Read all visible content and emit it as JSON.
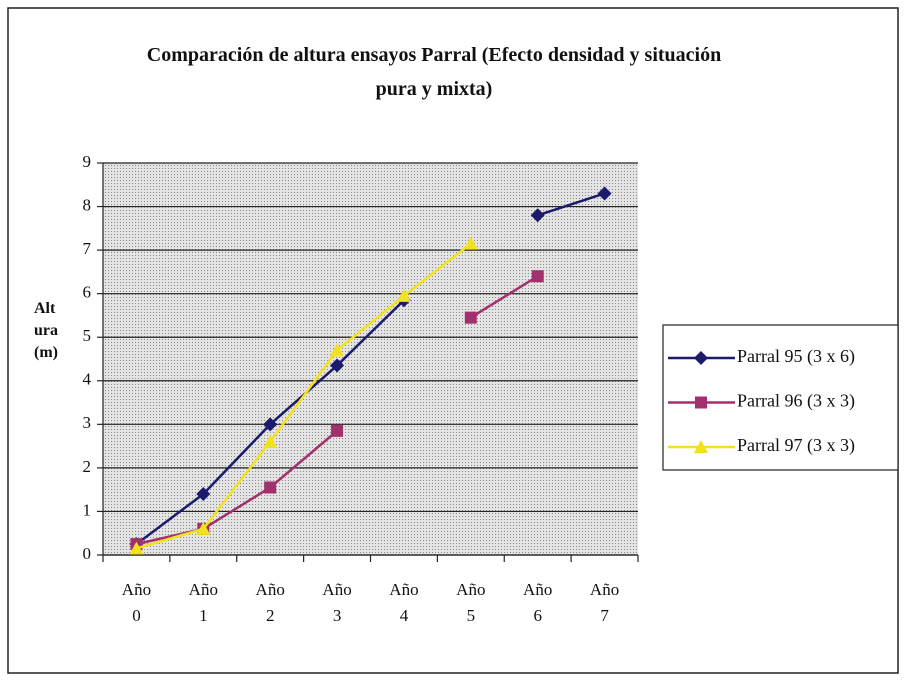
{
  "chart_data": {
    "type": "line",
    "title": "Comparación de altura ensayos Parral (Efecto densidad y situación pura y mixta)",
    "y_label": "Altura (m)",
    "categories": [
      "Año 0",
      "Año 1",
      "Año 2",
      "Año 3",
      "Año 4",
      "Año 5",
      "Año 6",
      "Año 7"
    ],
    "series": [
      {
        "name": "Parral 95 (3 x 6)",
        "color": "#1b1a6b",
        "marker": "diamond",
        "values": [
          0.25,
          1.4,
          3.0,
          4.35,
          5.85,
          null,
          7.8,
          8.3
        ]
      },
      {
        "name": "Parral 96 (3 x 3)",
        "color": "#a2306c",
        "marker": "square",
        "values": [
          0.25,
          0.6,
          1.55,
          2.85,
          null,
          5.45,
          6.4,
          null
        ]
      },
      {
        "name": "Parral 97 (3 x 3)",
        "color": "#f2e21c",
        "marker": "triangle",
        "values": [
          0.15,
          0.6,
          2.6,
          4.7,
          5.95,
          7.15,
          null,
          null
        ]
      }
    ],
    "ylim": [
      0,
      9
    ],
    "yticks": [
      0,
      1,
      2,
      3,
      4,
      5,
      6,
      7,
      8,
      9
    ],
    "grid": true,
    "legend": "right"
  }
}
